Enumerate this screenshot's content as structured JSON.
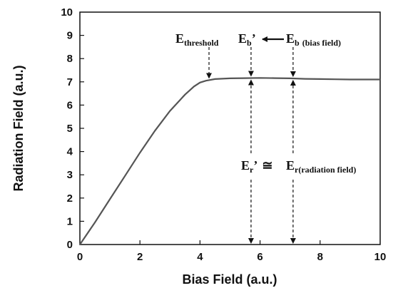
{
  "chart_data": {
    "type": "line",
    "title": "",
    "xlabel": "Bias Field (a.u.)",
    "ylabel": "Radiation Field (a.u.)",
    "xlim": [
      0,
      10
    ],
    "ylim": [
      0,
      10
    ],
    "xticks": [
      "0",
      "2",
      "4",
      "6",
      "8",
      "10"
    ],
    "yticks": [
      "0",
      "1",
      "2",
      "3",
      "4",
      "5",
      "6",
      "7",
      "8",
      "9",
      "10"
    ],
    "grid": false,
    "legend": "none",
    "line_color": "#555555",
    "series": [
      {
        "x": [
          0,
          0.5,
          1.0,
          1.5,
          2.0,
          2.5,
          3.0,
          3.5,
          3.8,
          4.0,
          4.2,
          4.5,
          5.0,
          5.5,
          6.0,
          6.5,
          7.0,
          7.5,
          8.0,
          8.5,
          9.0,
          9.5,
          10.0
        ],
        "y": [
          0,
          0.95,
          1.95,
          2.95,
          3.95,
          4.9,
          5.75,
          6.45,
          6.8,
          6.97,
          7.05,
          7.12,
          7.15,
          7.16,
          7.17,
          7.16,
          7.15,
          7.13,
          7.12,
          7.11,
          7.1,
          7.1,
          7.1
        ]
      }
    ],
    "annotations": {
      "threshold": {
        "main": "E",
        "sub": "threshold",
        "x": 4.3
      },
      "eb_prime": {
        "main": "E",
        "sub": "b",
        "prime": "’",
        "x": 5.7
      },
      "eb": {
        "main": "E",
        "sub": "b",
        "note": "(bias field)",
        "x": 7.1
      },
      "er_prime": {
        "main": "E",
        "sub": "r",
        "prime": "’",
        "approx": "≅"
      },
      "er": {
        "main": "E",
        "sub": "r",
        "note": "(radiation field)"
      }
    }
  }
}
